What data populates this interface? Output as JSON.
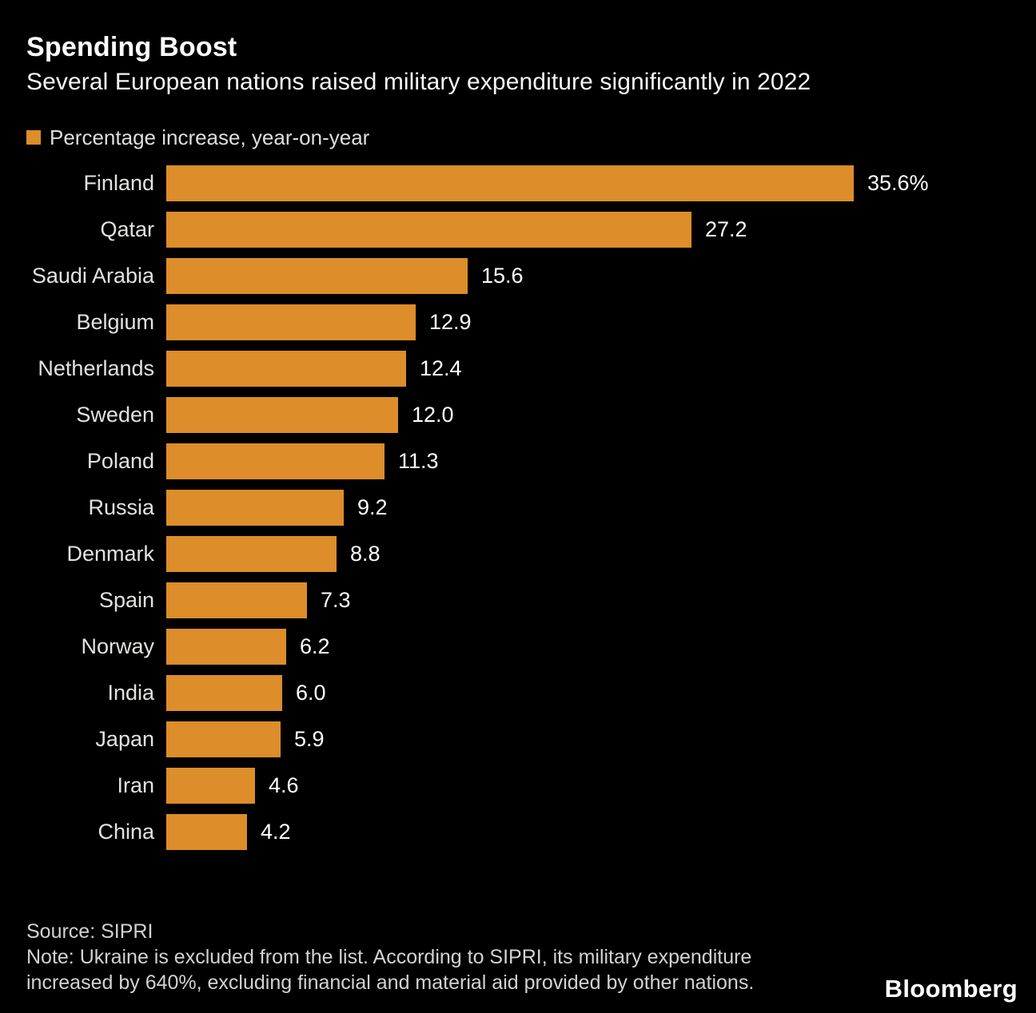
{
  "header": {
    "title": "Spending Boost",
    "subtitle": "Several European nations raised military expenditure significantly in 2022"
  },
  "legend": {
    "label": "Percentage increase, year-on-year",
    "swatch_color": "#dd8d29"
  },
  "chart_data": {
    "type": "bar",
    "orientation": "horizontal",
    "title": "Spending Boost",
    "subtitle": "Several European nations raised military expenditure significantly in 2022",
    "series_name": "Percentage increase, year-on-year",
    "categories": [
      "Finland",
      "Qatar",
      "Saudi Arabia",
      "Belgium",
      "Netherlands",
      "Sweden",
      "Poland",
      "Russia",
      "Denmark",
      "Spain",
      "Norway",
      "India",
      "Japan",
      "Iran",
      "China"
    ],
    "values": [
      35.6,
      27.2,
      15.6,
      12.9,
      12.4,
      12.0,
      11.3,
      9.2,
      8.8,
      7.3,
      6.2,
      6.0,
      5.9,
      4.6,
      4.2
    ],
    "value_labels": [
      "35.6%",
      "27.2",
      "15.6",
      "12.9",
      "12.4",
      "12.0",
      "11.3",
      "9.2",
      "8.8",
      "7.3",
      "6.2",
      "6.0",
      "5.9",
      "4.6",
      "4.2"
    ],
    "xlim": [
      0,
      35.6
    ],
    "bar_color": "#dd8d29",
    "grid": false,
    "legend_position": "top-left"
  },
  "footer": {
    "source": "Source: SIPRI",
    "note_line1": "Note: Ukraine is excluded from the list. According to SIPRI, its military expenditure",
    "note_line2": "increased by 640%, excluding financial and material aid provided by other nations.",
    "logo": "Bloomberg"
  }
}
